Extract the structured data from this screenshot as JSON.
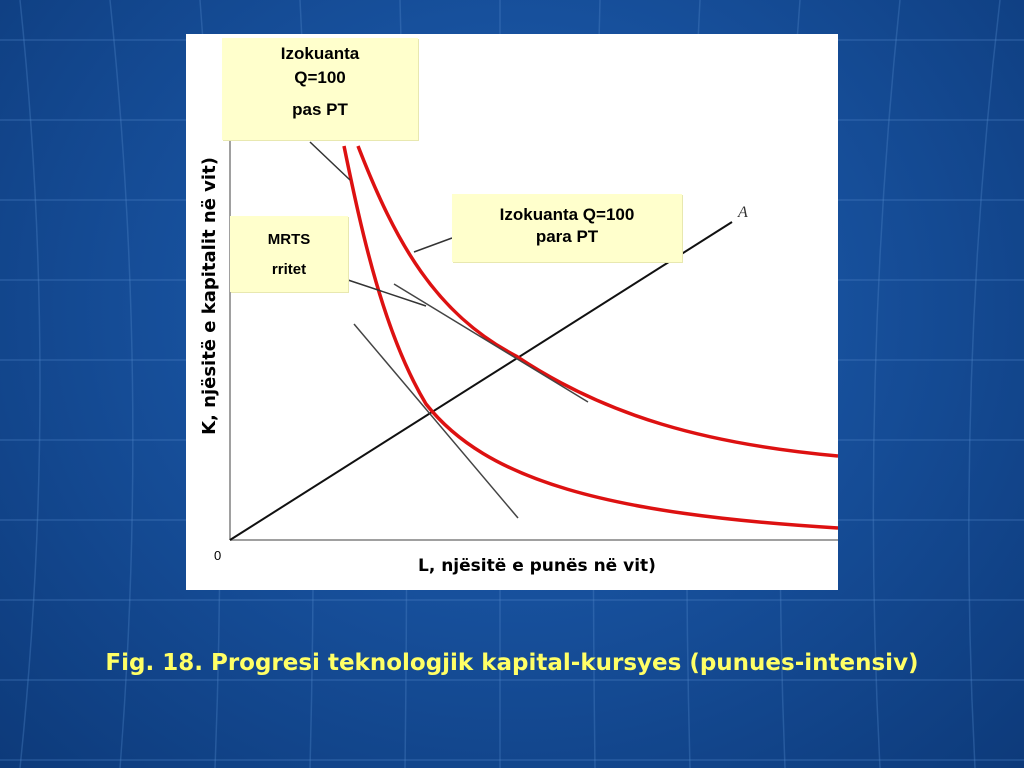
{
  "figure": {
    "notes": {
      "pas_pt_line1": "Izokuanta",
      "pas_pt_line2": "Q=100",
      "pas_pt_line3": "pas PT",
      "para_pt_line1": "Izokuanta Q=100",
      "para_pt_line2": "para PT",
      "mrts_line1": "MRTS",
      "mrts_line2": "rritet"
    },
    "y_axis_label": "K, njësitë e kapitalit në vit)",
    "x_axis_label": "L, njësitë e punës në vit)",
    "origin_label": "0",
    "ray_label": "A",
    "colors": {
      "isoquant": "#dd1111",
      "axes": "#999999",
      "lines": "#222222",
      "note_bg": "#ffffcc"
    }
  },
  "caption": "Fig. 18. Progresi teknologjik kapital-kursyes (punues-intensiv)"
}
